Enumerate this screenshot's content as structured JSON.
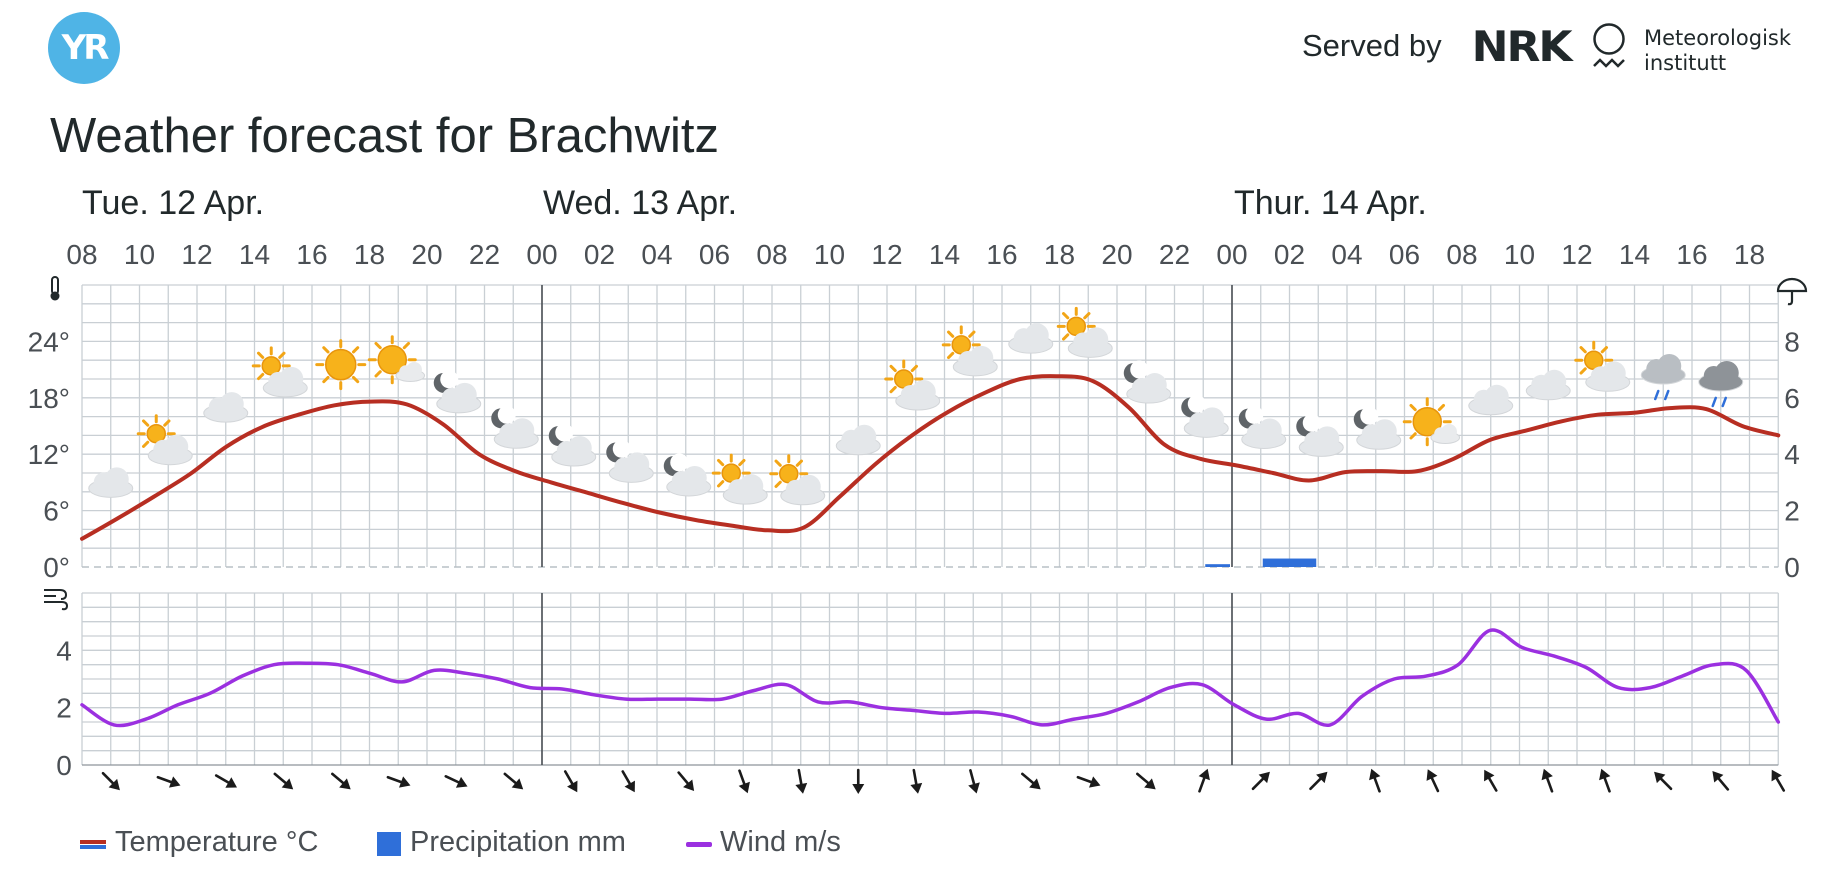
{
  "header": {
    "logo_text": "YR",
    "served_by": "Served by",
    "nrk_logo_text": "NRK",
    "met_line1": "Meteorologisk",
    "met_line2": "institutt"
  },
  "title": "Weather forecast for Brachwitz",
  "chart_data": {
    "type": "line",
    "days": [
      {
        "label": "Tue. 12 Apr."
      },
      {
        "label": "Wed. 13 Apr."
      },
      {
        "label": "Thur. 14 Apr."
      }
    ],
    "hour_ticks": [
      "08",
      "10",
      "12",
      "14",
      "16",
      "18",
      "20",
      "22",
      "00",
      "02",
      "04",
      "06",
      "08",
      "10",
      "12",
      "14",
      "16",
      "18",
      "20",
      "22",
      "00",
      "02",
      "04",
      "06",
      "08",
      "10",
      "12",
      "14",
      "16",
      "18"
    ],
    "temp_axis": {
      "ticks": [
        "0°",
        "6°",
        "12°",
        "18°",
        "24°"
      ],
      "values": [
        0,
        6,
        12,
        18,
        24
      ],
      "ylim": [
        0,
        30
      ]
    },
    "precip_axis": {
      "ticks": [
        "0",
        "2",
        "4",
        "6",
        "8"
      ],
      "values": [
        0,
        2,
        4,
        6,
        8
      ],
      "ylim": [
        0,
        10
      ]
    },
    "wind_axis": {
      "ticks": [
        "0",
        "2",
        "4"
      ],
      "values": [
        0,
        2,
        4
      ],
      "ylim": [
        0,
        6
      ]
    },
    "colors": {
      "temperature": "#b72e22",
      "precipitation": "#2f6fd9",
      "wind": "#9b30e0",
      "grid": "#c9cfd4"
    },
    "temperature": [
      3.0,
      5.2,
      7.5,
      9.9,
      12.8,
      14.9,
      16.2,
      17.2,
      17.6,
      17.3,
      15.2,
      12.0,
      10.2,
      9.0,
      7.9,
      6.8,
      5.8,
      5.0,
      4.4,
      3.9,
      4.2,
      7.5,
      11.0,
      14.0,
      16.5,
      18.5,
      20.0,
      20.3,
      19.8,
      17.0,
      13.0,
      11.5,
      10.8,
      10.0,
      9.2,
      10.1,
      10.2,
      10.2,
      11.5,
      13.5,
      14.5,
      15.5,
      16.2,
      16.4,
      16.9,
      16.8,
      15.0,
      14.0
    ],
    "wind": [
      2.1,
      1.4,
      1.6,
      2.1,
      2.5,
      3.1,
      3.5,
      3.55,
      3.5,
      3.2,
      2.9,
      3.3,
      3.2,
      3.0,
      2.7,
      2.65,
      2.45,
      2.3,
      2.3,
      2.3,
      2.3,
      2.6,
      2.8,
      2.2,
      2.2,
      2.0,
      1.9,
      1.8,
      1.85,
      1.7,
      1.4,
      1.6,
      1.8,
      2.2,
      2.7,
      2.8,
      2.1,
      1.6,
      1.8,
      1.4,
      2.4,
      3.0,
      3.1,
      3.5,
      4.7,
      4.1,
      3.8,
      3.4,
      2.7,
      2.7,
      3.1,
      3.5,
      3.3,
      1.5
    ],
    "precipitation": [
      {
        "start_hour": 39.0,
        "end_hour": 40.0,
        "value": 0.1
      },
      {
        "start_hour": 41.0,
        "end_hour": 43.0,
        "value": 0.3
      }
    ],
    "weather_icons": [
      "cloudy",
      "partly-sunny",
      "cloudy",
      "partly-sunny",
      "sunny",
      "sunny-cloud",
      "moon-cloud",
      "moon-cloud",
      "moon-cloud",
      "moon-cloud",
      "moon-cloud",
      "partly-sunny",
      "partly-sunny",
      "cloudy",
      "partly-sunny",
      "partly-sunny",
      "cloudy",
      "partly-sunny",
      "moon-cloud",
      "moon-cloud",
      "moon-cloud",
      "moon-cloud",
      "moon-cloud",
      "sunny-cloud",
      "cloudy",
      "cloudy",
      "partly-sunny",
      "rain",
      "heavy-rain"
    ],
    "wind_directions_deg": [
      135,
      110,
      120,
      130,
      130,
      110,
      115,
      130,
      150,
      150,
      140,
      160,
      170,
      180,
      170,
      165,
      130,
      110,
      130,
      20,
      45,
      45,
      340,
      335,
      330,
      340,
      340,
      315,
      320,
      330
    ]
  },
  "legend": [
    {
      "label": "Temperature °C",
      "color": "#b72e22"
    },
    {
      "label": "Precipitation mm",
      "color": "#2f6fd9"
    },
    {
      "label": "Wind m/s",
      "color": "#9b30e0"
    }
  ]
}
